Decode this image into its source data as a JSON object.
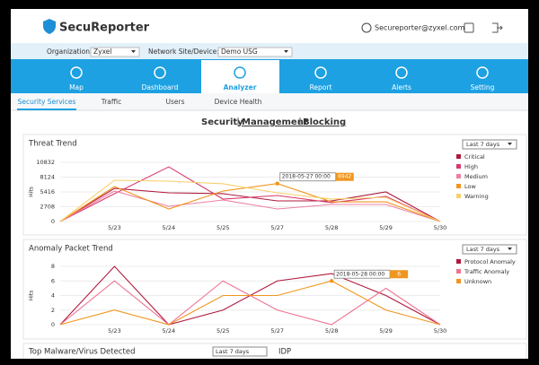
{
  "header": {
    "brand": "SecuReporter",
    "user_email": "Secureporter@zyxel.com"
  },
  "filters": {
    "organization_label": "Organization:",
    "organization": "Zyxel",
    "device_label": "Network Site/Device:",
    "device": "Demo USG"
  },
  "nav": {
    "items": [
      "Map",
      "Dashboard",
      "Analyzer",
      "Report",
      "Alerts",
      "Setting"
    ],
    "active": 2
  },
  "tabs": {
    "items": [
      "Security Services",
      "Traffic",
      "Users",
      "Device Health"
    ],
    "active": 0
  },
  "section_links": [
    "Security",
    "Management",
    "Blocking"
  ],
  "charts": [
    {
      "type": "line",
      "title": "Threat Trend",
      "range_select": "Last 7 days",
      "y_label": "Hits",
      "categories": [
        null,
        "5/23",
        "5/24",
        "5/25",
        "5/27",
        "5/28",
        "5/29",
        "5/30"
      ],
      "ylim": [
        0,
        10832
      ],
      "yticks": [
        0,
        2708,
        5416,
        8124,
        10832
      ],
      "grid": true,
      "series": [
        {
          "name": "Critical",
          "color": "#b0183c",
          "values": [
            0,
            6070,
            5250,
            5090,
            3775,
            3775,
            5416,
            0
          ]
        },
        {
          "name": "High",
          "color": "#d93a6b",
          "values": [
            0,
            5090,
            10000,
            4100,
            4760,
            3450,
            4600,
            0
          ]
        },
        {
          "name": "Medium",
          "color": "#ec80a2",
          "values": [
            0,
            5580,
            2790,
            3940,
            2300,
            3120,
            3120,
            0
          ]
        },
        {
          "name": "Low",
          "color": "#f0961e",
          "values": [
            0,
            6400,
            2300,
            5580,
            6942,
            3600,
            3600,
            0
          ]
        },
        {
          "name": "Warning",
          "color": "#f7cf6b",
          "values": [
            0,
            7550,
            7385,
            6900,
            5250,
            4100,
            4430,
            0
          ]
        }
      ],
      "tooltip": {
        "label": "2018-05-27 00:00",
        "series": 3,
        "index": 4
      }
    },
    {
      "type": "line",
      "title": "Anomaly Packet Trend",
      "range_select": "Last 7 days",
      "y_label": "Hits",
      "categories": [
        null,
        "5/23",
        "5/24",
        "5/25",
        "5/27",
        "5/28",
        "5/29",
        "5/30"
      ],
      "ylim": [
        0,
        8
      ],
      "yticks": [
        0,
        2,
        4,
        6,
        8
      ],
      "grid": true,
      "series": [
        {
          "name": "Protocol Anomaly",
          "color": "#b0183c",
          "values": [
            0,
            8,
            0,
            2,
            6,
            7,
            4,
            0
          ]
        },
        {
          "name": "Traffic Anomaly",
          "color": "#ee7290",
          "values": [
            0,
            6,
            0,
            6,
            2,
            0,
            5,
            0
          ]
        },
        {
          "name": "Unknown",
          "color": "#f0961e",
          "values": [
            0,
            2,
            0,
            4,
            4,
            6,
            2,
            0
          ]
        }
      ],
      "tooltip": {
        "label": "2018-05-28 00:00",
        "series": 2,
        "index": 5
      }
    }
  ],
  "bottom": {
    "title": "Top Malware/Virus Detected",
    "range_select": "Last 7 days",
    "side_title": "IDP"
  }
}
